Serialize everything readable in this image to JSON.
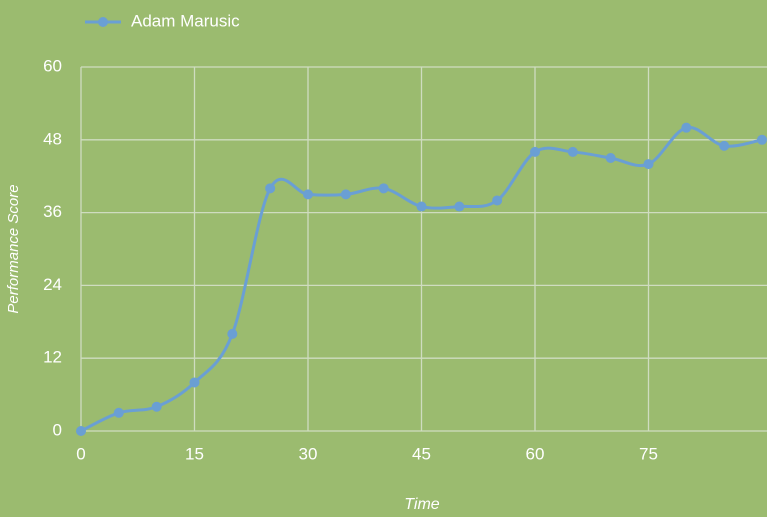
{
  "chart_data": {
    "type": "line",
    "smooth": true,
    "x_label": "Time",
    "y_label": "Performance Score",
    "x": [
      0,
      5,
      10,
      15,
      20,
      25,
      30,
      35,
      40,
      45,
      50,
      55,
      60,
      65,
      70,
      75,
      80,
      85,
      90
    ],
    "series": [
      {
        "name": "Adam Marusic",
        "color": "#6a9fd4",
        "values": [
          0,
          3,
          4,
          8,
          16,
          40,
          39,
          39,
          40,
          37,
          37,
          38,
          46,
          46,
          45,
          44,
          50,
          47,
          48
        ]
      }
    ],
    "xlim": [
      0,
      90
    ],
    "xticks": [
      0,
      15,
      30,
      45,
      60,
      75
    ],
    "ylim": [
      0,
      60
    ],
    "yticks": [
      0,
      12,
      24,
      36,
      48,
      60
    ],
    "grid": true,
    "legend": "top-left"
  }
}
